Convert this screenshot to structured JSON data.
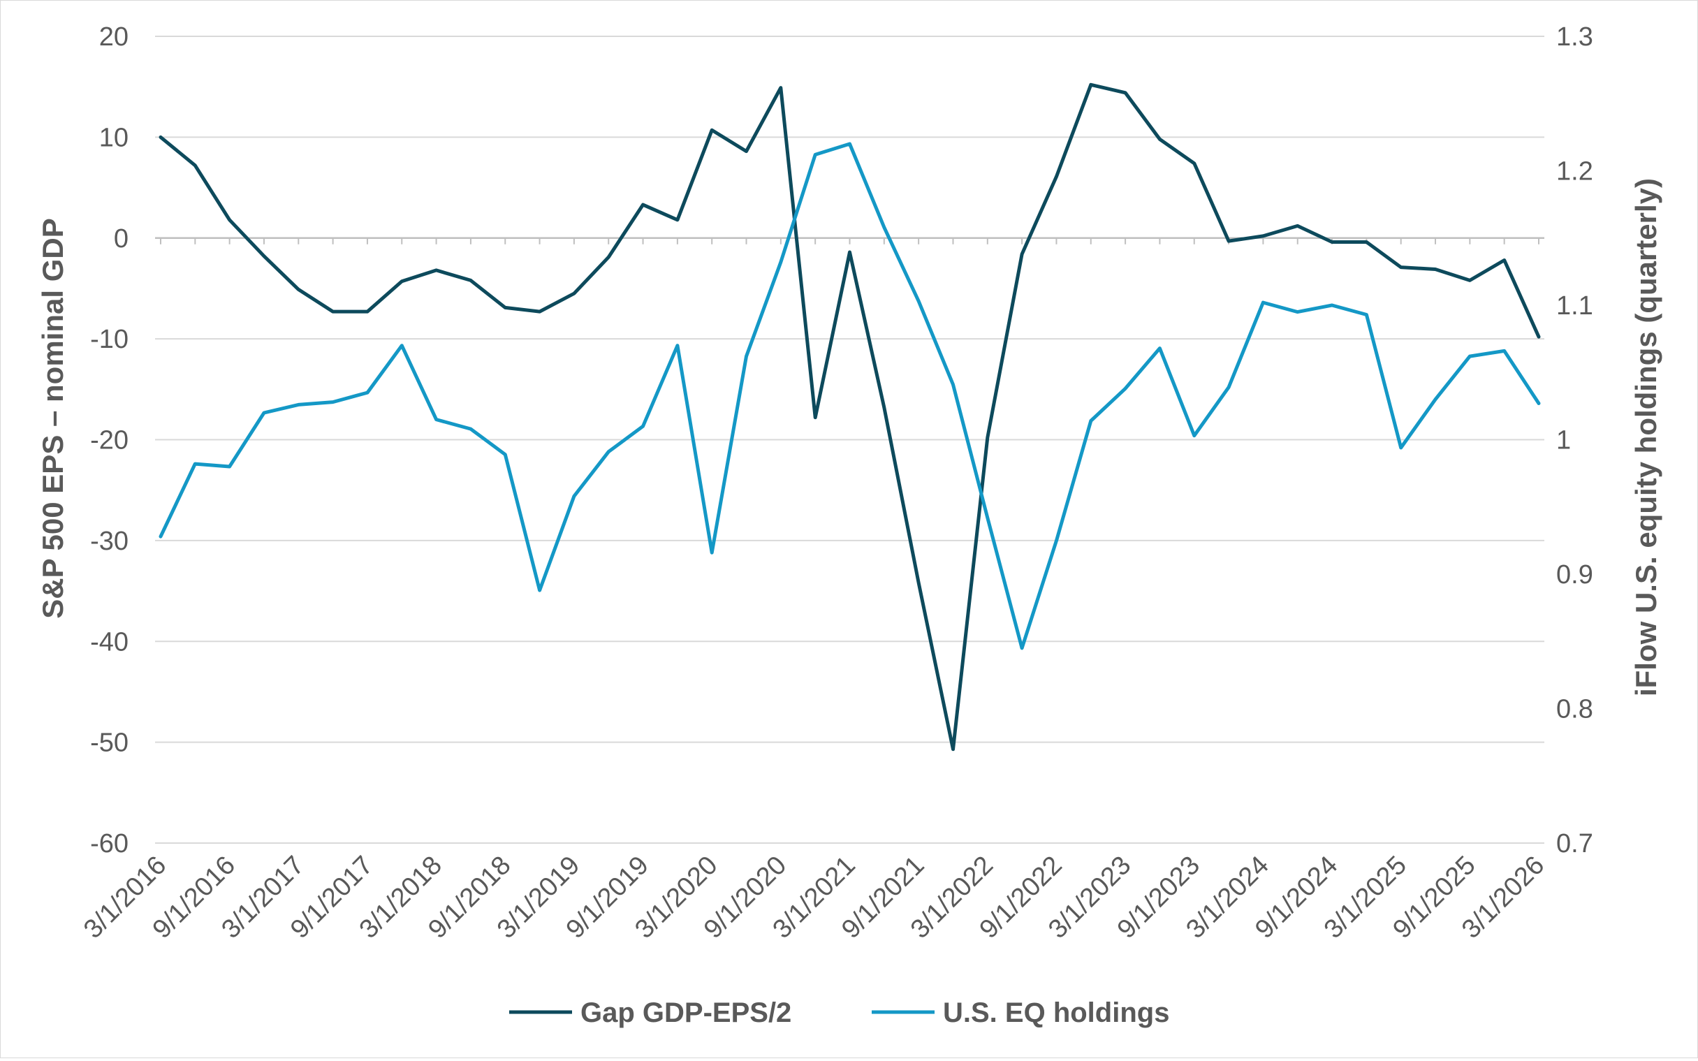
{
  "chart_data": {
    "type": "line",
    "y_left": {
      "label": "S&P 500 EPS – nominal GDP",
      "min": -60,
      "max": 20,
      "ticks": [
        20,
        10,
        0,
        -10,
        -20,
        -30,
        -40,
        -50,
        -60
      ],
      "tick_labels": [
        "20",
        "10",
        "0",
        "-10",
        "-20",
        "-30",
        "-40",
        "-50",
        "-60"
      ]
    },
    "y_right": {
      "label": "iFlow U.S. equity holdings (quarterly)",
      "min": 0.7,
      "max": 1.3,
      "ticks": [
        1.3,
        1.2,
        1.1,
        1.0,
        0.9,
        0.8,
        0.7
      ],
      "tick_labels": [
        "1.3",
        "1.2",
        "1.1",
        "1",
        "0.9",
        "0.8",
        "0.7"
      ]
    },
    "x_tick_labels": [
      "3/1/2016",
      "9/1/2016",
      "3/1/2017",
      "9/1/2017",
      "3/1/2018",
      "9/1/2018",
      "3/1/2019",
      "9/1/2019",
      "3/1/2020",
      "9/1/2020",
      "3/1/2021",
      "9/1/2021",
      "3/1/2022",
      "9/1/2022",
      "3/1/2023",
      "9/1/2023",
      "3/1/2024",
      "9/1/2024",
      "3/1/2025",
      "9/1/2025",
      "3/1/2026"
    ],
    "x": [
      "3/1/2016",
      "6/1/2016",
      "9/1/2016",
      "12/1/2016",
      "3/1/2017",
      "6/1/2017",
      "9/1/2017",
      "12/1/2017",
      "3/1/2018",
      "6/1/2018",
      "9/1/2018",
      "12/1/2018",
      "3/1/2019",
      "6/1/2019",
      "9/1/2019",
      "12/1/2019",
      "3/1/2020",
      "6/1/2020",
      "9/1/2020",
      "12/1/2020",
      "3/1/2021",
      "6/1/2021",
      "9/1/2021",
      "12/1/2021",
      "3/1/2022",
      "6/1/2022",
      "9/1/2022",
      "12/1/2022",
      "3/1/2023",
      "6/1/2023",
      "9/1/2023",
      "12/1/2023",
      "3/1/2024",
      "6/1/2024",
      "9/1/2024",
      "12/1/2024",
      "3/1/2025",
      "6/1/2025",
      "9/1/2025",
      "12/1/2025",
      "3/1/2026"
    ],
    "series": [
      {
        "name": "Gap GDP-EPS/2",
        "axis": "left",
        "color": "#0d4a5c",
        "values": [
          10,
          7.2,
          1.8,
          -1.8,
          -5.1,
          -7.3,
          -7.3,
          -4.3,
          -3.2,
          -4.2,
          -6.9,
          -7.3,
          -5.5,
          -1.9,
          3.3,
          1.8,
          10.7,
          8.6,
          14.9,
          -17.8,
          -1.4,
          -16.8,
          -34.2,
          -50.7,
          -19.8,
          -1.6,
          6.1,
          15.2,
          14.4,
          9.8,
          7.4,
          -0.3,
          0.2,
          1.2,
          -0.4,
          -0.4,
          -2.9,
          -3.1,
          -4.2,
          -2.2,
          -9.8
        ]
      },
      {
        "name": "U.S. EQ holdings",
        "axis": "right",
        "color": "#1498c6",
        "values": [
          0.928,
          0.982,
          0.98,
          1.02,
          1.026,
          1.028,
          1.035,
          1.07,
          1.015,
          1.008,
          0.989,
          0.888,
          0.958,
          0.991,
          1.01,
          1.07,
          0.916,
          1.062,
          1.132,
          1.212,
          1.22,
          1.158,
          1.103,
          1.041,
          0.942,
          0.845,
          0.925,
          1.014,
          1.038,
          1.068,
          1.003,
          1.039,
          1.102,
          1.095,
          1.1,
          1.093,
          0.994,
          1.03,
          1.062,
          1.066,
          1.027
        ]
      }
    ],
    "legend": "bottom"
  }
}
